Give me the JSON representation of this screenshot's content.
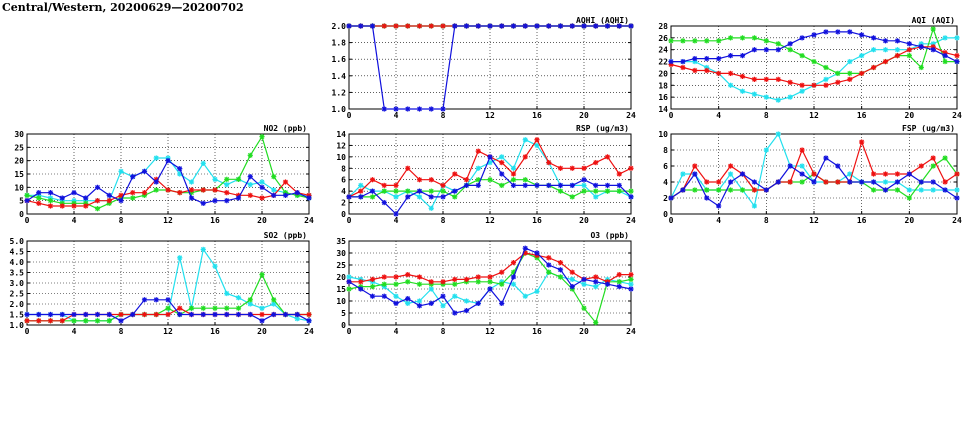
{
  "page": {
    "title": "Central/Western, 20200629—20200702"
  },
  "colors": {
    "cyan": "#22e0ee",
    "green": "#22dd22",
    "red": "#ee1111",
    "blue": "#1111dd",
    "grid": "#000000"
  },
  "chart_data": [
    {
      "id": "aqhi",
      "type": "line",
      "title": "AQHI (AQHI)",
      "xlim": [
        0,
        24
      ],
      "ylim": [
        1.0,
        2.0
      ],
      "xticks": [
        "0",
        "4",
        "8",
        "12",
        "16",
        "20",
        "24"
      ],
      "yticks": [
        "1.0",
        "1.2",
        "1.4",
        "1.6",
        "1.8",
        "2.0"
      ],
      "series": [
        {
          "color": "cyan",
          "values": [
            2,
            2,
            2,
            2,
            2,
            2,
            2,
            2,
            2,
            2,
            2,
            2,
            2,
            2,
            2,
            2,
            2,
            2,
            2,
            2,
            2,
            2,
            2,
            2,
            2
          ]
        },
        {
          "color": "green",
          "values": [
            2,
            2,
            2,
            2,
            2,
            2,
            2,
            2,
            2,
            2,
            2,
            2,
            2,
            2,
            2,
            2,
            2,
            2,
            2,
            2,
            2,
            2,
            2,
            2,
            2
          ]
        },
        {
          "color": "red",
          "values": [
            2,
            2,
            2,
            2,
            2,
            2,
            2,
            2,
            2,
            2,
            2,
            2,
            2,
            2,
            2,
            2,
            2,
            2,
            2,
            2,
            2,
            2,
            2,
            2,
            2
          ]
        },
        {
          "color": "blue",
          "values": [
            2,
            2,
            2,
            1,
            1,
            1,
            1,
            1,
            1,
            2,
            2,
            2,
            2,
            2,
            2,
            2,
            2,
            2,
            2,
            2,
            2,
            2,
            2,
            2,
            2
          ]
        }
      ]
    },
    {
      "id": "aqi",
      "type": "line",
      "title": "AQI (AQI)",
      "xlim": [
        0,
        24
      ],
      "ylim": [
        14,
        28
      ],
      "xticks": [
        "0",
        "4",
        "8",
        "12",
        "16",
        "20",
        "24"
      ],
      "yticks": [
        "14",
        "16",
        "18",
        "20",
        "22",
        "24",
        "26",
        "28"
      ],
      "series": [
        {
          "color": "cyan",
          "values": [
            22,
            22,
            22,
            21,
            20,
            18,
            17,
            16.5,
            16,
            15.5,
            16,
            17,
            18,
            19,
            20,
            22,
            23,
            24,
            24,
            24,
            24,
            25,
            25,
            26,
            26
          ]
        },
        {
          "color": "green",
          "values": [
            25.5,
            25.5,
            25.5,
            25.5,
            25.5,
            26,
            26,
            26,
            25.5,
            25,
            24,
            23,
            22,
            21,
            20,
            20,
            20,
            21,
            22,
            23,
            23,
            21,
            27.5,
            22,
            22
          ]
        },
        {
          "color": "red",
          "values": [
            21.5,
            21,
            20.5,
            20.5,
            20,
            20,
            19.5,
            19,
            19,
            19,
            18.5,
            18,
            18,
            18,
            18.5,
            19,
            20,
            21,
            22,
            23,
            24,
            24.5,
            24.5,
            23.5,
            23
          ]
        },
        {
          "color": "blue",
          "values": [
            22,
            22,
            22.5,
            22.5,
            22.5,
            23,
            23,
            24,
            24,
            24,
            25,
            26,
            26.5,
            27,
            27,
            27,
            26.5,
            26,
            25.5,
            25.5,
            25,
            24.5,
            24,
            23,
            22
          ]
        }
      ]
    },
    {
      "id": "no2",
      "type": "line",
      "title": "NO2 (ppb)",
      "xlim": [
        0,
        24
      ],
      "ylim": [
        0,
        30
      ],
      "xticks": [
        "0",
        "4",
        "8",
        "12",
        "16",
        "20",
        "24"
      ],
      "yticks": [
        "0",
        "5",
        "10",
        "15",
        "20",
        "25",
        "30"
      ],
      "series": [
        {
          "color": "cyan",
          "values": [
            7,
            7,
            6,
            5,
            5,
            5,
            5,
            5,
            16,
            14,
            16,
            21,
            21,
            15,
            12,
            19,
            13,
            11,
            13,
            11,
            12,
            9,
            8,
            7,
            7
          ]
        },
        {
          "color": "green",
          "values": [
            7,
            6,
            5,
            4,
            4,
            4,
            2,
            4,
            6,
            6,
            7,
            9,
            9,
            8,
            8,
            9,
            9,
            13,
            13,
            22,
            29,
            14,
            8,
            7,
            6
          ]
        },
        {
          "color": "red",
          "values": [
            5,
            4,
            3,
            3,
            3,
            3,
            5,
            5,
            7,
            8,
            8,
            13,
            9,
            8,
            9,
            9,
            9,
            8,
            7,
            7,
            6,
            7,
            12,
            8,
            7
          ]
        },
        {
          "color": "blue",
          "values": [
            5,
            8,
            8,
            6,
            8,
            6,
            10,
            7,
            5,
            14,
            16,
            12,
            20,
            17,
            6,
            4,
            5,
            5,
            6,
            14,
            10,
            7,
            7,
            8,
            6
          ]
        }
      ]
    },
    {
      "id": "rsp",
      "type": "line",
      "title": "RSP (ug/m3)",
      "xlim": [
        0,
        24
      ],
      "ylim": [
        0,
        14
      ],
      "xticks": [
        "0",
        "4",
        "8",
        "12",
        "16",
        "20",
        "24"
      ],
      "yticks": [
        "0",
        "2",
        "4",
        "6",
        "8",
        "10",
        "12",
        "14"
      ],
      "series": [
        {
          "color": "cyan",
          "values": [
            3,
            5,
            4,
            4,
            3,
            4,
            3,
            1,
            5,
            4,
            5,
            8,
            9,
            10,
            8,
            13,
            12,
            9,
            5,
            5,
            5,
            3,
            4,
            4,
            3
          ]
        },
        {
          "color": "green",
          "values": [
            3,
            3,
            3,
            4,
            4,
            4,
            4,
            4,
            4,
            3,
            5,
            6,
            6,
            5,
            6,
            6,
            5,
            5,
            4,
            3,
            4,
            4,
            4,
            4,
            4
          ]
        },
        {
          "color": "red",
          "values": [
            3,
            4,
            6,
            5,
            5,
            8,
            6,
            6,
            5,
            7,
            6,
            11,
            10,
            9,
            7,
            10,
            13,
            9,
            8,
            8,
            8,
            9,
            10,
            7,
            8
          ]
        },
        {
          "color": "blue",
          "values": [
            3,
            3,
            4,
            2,
            0,
            3,
            4,
            3,
            3,
            4,
            5,
            5,
            10,
            7,
            5,
            5,
            5,
            5,
            5,
            5,
            6,
            5,
            5,
            5,
            3
          ]
        }
      ]
    },
    {
      "id": "fsp",
      "type": "line",
      "title": "FSP (ug/m3)",
      "xlim": [
        0,
        24
      ],
      "ylim": [
        0,
        10
      ],
      "xticks": [
        "0",
        "4",
        "8",
        "12",
        "16",
        "20",
        "24"
      ],
      "yticks": [
        "0",
        "2",
        "4",
        "6",
        "8",
        "10"
      ],
      "series": [
        {
          "color": "cyan",
          "values": [
            2,
            5,
            5,
            3,
            3,
            5,
            3,
            1,
            8,
            10,
            6,
            6,
            4,
            4,
            4,
            5,
            4,
            4,
            4,
            4,
            3,
            3,
            3,
            3,
            3
          ]
        },
        {
          "color": "green",
          "values": [
            2,
            3,
            3,
            3,
            3,
            3,
            3,
            3,
            3,
            4,
            4,
            4,
            5,
            4,
            4,
            4,
            4,
            3,
            3,
            3,
            2,
            4,
            6,
            7,
            5
          ]
        },
        {
          "color": "red",
          "values": [
            2,
            3,
            6,
            4,
            4,
            6,
            5,
            3,
            3,
            4,
            4,
            8,
            5,
            4,
            4,
            4,
            9,
            5,
            5,
            5,
            5,
            6,
            7,
            4,
            5
          ]
        },
        {
          "color": "blue",
          "values": [
            2,
            3,
            5,
            2,
            1,
            4,
            5,
            4,
            3,
            4,
            6,
            5,
            4,
            7,
            6,
            4,
            4,
            4,
            3,
            4,
            5,
            4,
            4,
            3,
            2
          ]
        }
      ]
    },
    {
      "id": "so2",
      "type": "line",
      "title": "SO2 (ppb)",
      "xlim": [
        0,
        24
      ],
      "ylim": [
        1.0,
        5.0
      ],
      "xticks": [
        "0",
        "4",
        "8",
        "12",
        "16",
        "20",
        "24"
      ],
      "yticks": [
        "1.0",
        "1.5",
        "2.0",
        "2.5",
        "3.0",
        "3.5",
        "4.0",
        "4.5",
        "5.0"
      ],
      "series": [
        {
          "color": "cyan",
          "values": [
            1.5,
            1.5,
            1.5,
            1.5,
            1.2,
            1.2,
            1.2,
            1.2,
            1.5,
            1.5,
            1.5,
            1.5,
            1.5,
            4.2,
            1.8,
            4.6,
            3.8,
            2.5,
            2.3,
            2.0,
            1.8,
            2.0,
            1.5,
            1.3,
            1.2
          ]
        },
        {
          "color": "green",
          "values": [
            1.2,
            1.2,
            1.2,
            1.2,
            1.2,
            1.2,
            1.2,
            1.2,
            1.5,
            1.5,
            1.5,
            1.5,
            1.8,
            1.5,
            1.8,
            1.8,
            1.8,
            1.8,
            1.8,
            2.2,
            3.4,
            2.2,
            1.5,
            1.5,
            1.5
          ]
        },
        {
          "color": "red",
          "values": [
            1.2,
            1.2,
            1.2,
            1.2,
            1.5,
            1.5,
            1.5,
            1.5,
            1.5,
            1.5,
            1.5,
            1.5,
            1.5,
            1.8,
            1.5,
            1.5,
            1.5,
            1.5,
            1.5,
            1.5,
            1.5,
            1.5,
            1.5,
            1.5,
            1.5
          ]
        },
        {
          "color": "blue",
          "values": [
            1.5,
            1.5,
            1.5,
            1.5,
            1.5,
            1.5,
            1.5,
            1.5,
            1.2,
            1.5,
            2.2,
            2.2,
            2.2,
            1.5,
            1.5,
            1.5,
            1.5,
            1.5,
            1.5,
            1.5,
            1.2,
            1.5,
            1.5,
            1.5,
            1.2
          ]
        }
      ]
    },
    {
      "id": "o3",
      "type": "line",
      "title": "O3 (ppb)",
      "xlim": [
        0,
        24
      ],
      "ylim": [
        0,
        35
      ],
      "xticks": [
        "0",
        "4",
        "8",
        "12",
        "16",
        "20",
        "24"
      ],
      "yticks": [
        "0",
        "5",
        "10",
        "15",
        "20",
        "25",
        "30",
        "35"
      ],
      "series": [
        {
          "color": "cyan",
          "values": [
            20,
            19,
            18,
            16,
            12,
            9,
            10,
            15,
            8,
            12,
            10,
            9,
            15,
            18,
            17,
            12,
            14,
            22,
            20,
            19,
            17,
            16,
            19,
            18,
            17
          ]
        },
        {
          "color": "green",
          "values": [
            15,
            16,
            16,
            17,
            17,
            18,
            17,
            17,
            17,
            17,
            18,
            18,
            18,
            17,
            22,
            30,
            28,
            22,
            20,
            15,
            7,
            1,
            18,
            18,
            19
          ]
        },
        {
          "color": "red",
          "values": [
            18,
            18,
            19,
            20,
            20,
            21,
            20,
            18,
            18,
            19,
            19,
            20,
            20,
            22,
            26,
            30,
            29,
            28,
            26,
            22,
            19,
            20,
            18,
            21,
            21
          ]
        },
        {
          "color": "blue",
          "values": [
            18,
            15,
            12,
            12,
            9,
            11,
            8,
            9,
            12,
            5,
            6,
            9,
            15,
            9,
            20,
            32,
            30,
            25,
            23,
            16,
            19,
            18,
            17,
            16,
            15
          ]
        }
      ]
    }
  ]
}
